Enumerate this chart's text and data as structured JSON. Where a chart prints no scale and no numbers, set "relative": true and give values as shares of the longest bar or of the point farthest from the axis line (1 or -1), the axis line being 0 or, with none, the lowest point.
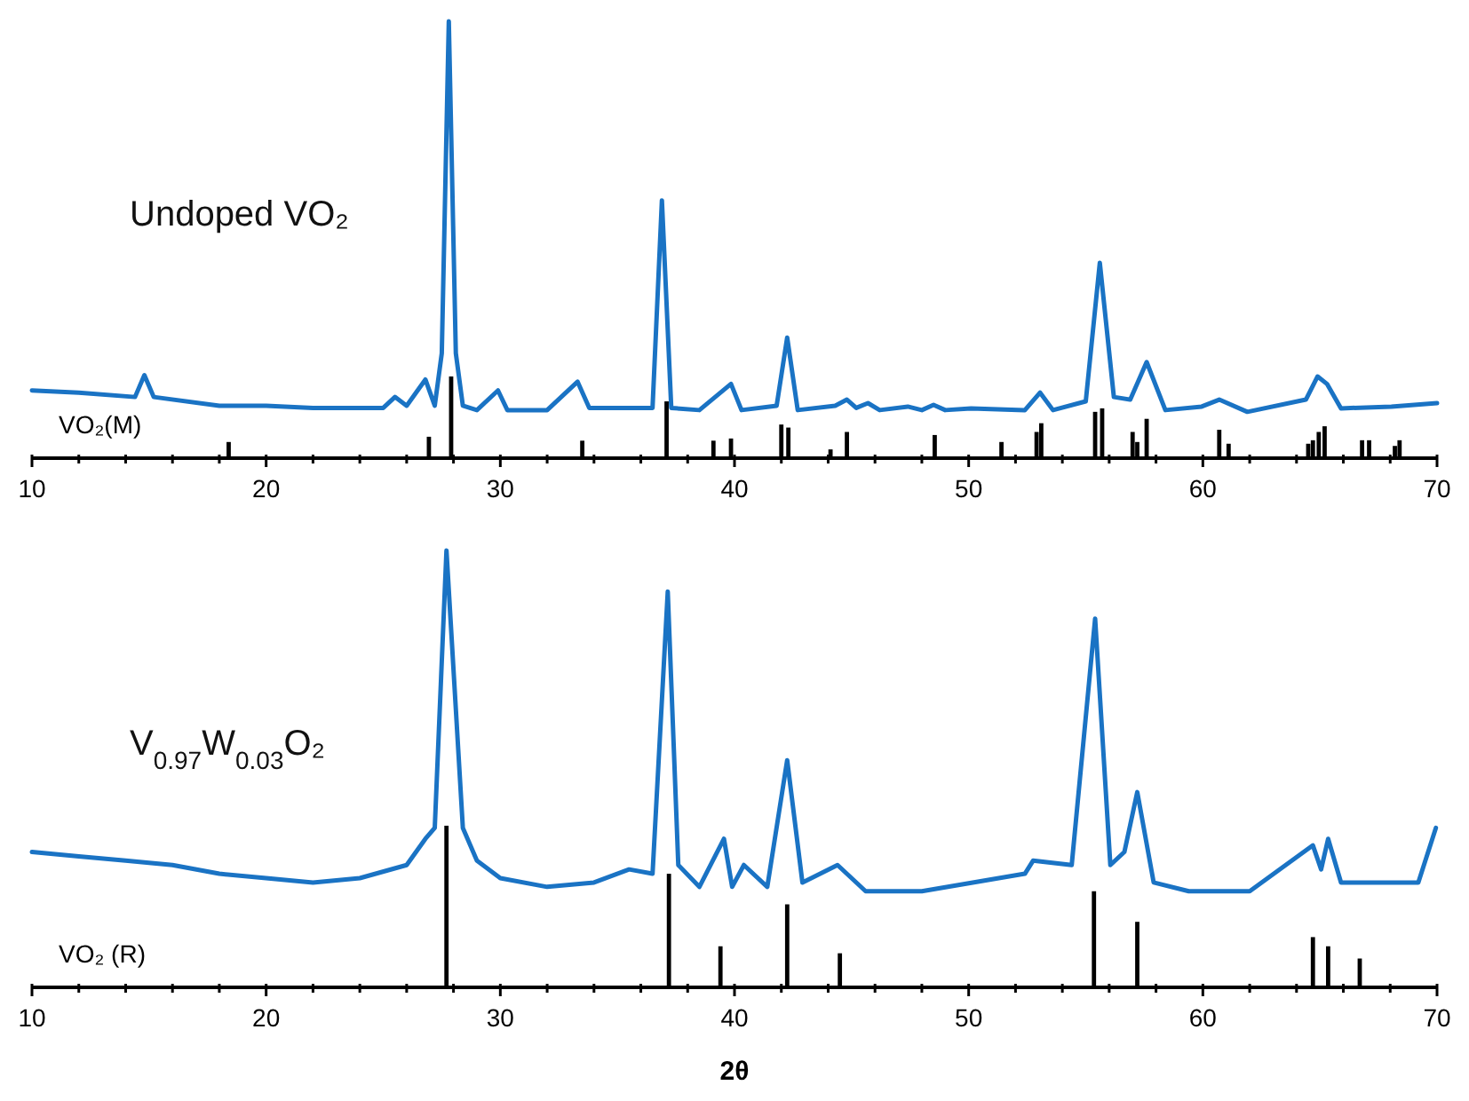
{
  "chart_data": [
    {
      "type": "line",
      "title": "Undoped VO₂",
      "relative": true,
      "xlim": [
        10,
        70
      ],
      "xticks": [
        10,
        {
          "value": 12,
          "label": null
        },
        {
          "value": 14,
          "label": null
        },
        {
          "value": 16,
          "label": null
        },
        {
          "value": 18,
          "label": null
        },
        20,
        {
          "value": 22,
          "label": null
        },
        {
          "value": 24,
          "label": null
        },
        {
          "value": 26,
          "label": null
        },
        {
          "value": 28,
          "label": null
        },
        30,
        {
          "value": 32,
          "label": null
        },
        {
          "value": 34,
          "label": null
        },
        {
          "value": 36,
          "label": null
        },
        {
          "value": 38,
          "label": null
        },
        40,
        {
          "value": 42,
          "label": null
        },
        {
          "value": 44,
          "label": null
        },
        {
          "value": 46,
          "label": null
        },
        {
          "value": 48,
          "label": null
        },
        50,
        {
          "value": 52,
          "label": null
        },
        {
          "value": 54,
          "label": null
        },
        {
          "value": 56,
          "label": null
        },
        {
          "value": 58,
          "label": null
        },
        60,
        {
          "value": 62,
          "label": null
        },
        {
          "value": 64,
          "label": null
        },
        {
          "value": 66,
          "label": null
        },
        {
          "value": 68,
          "label": null
        },
        70
      ],
      "series": [
        {
          "color": "#1a73c4",
          "x": [
            10,
            12,
            14.4,
            14.8,
            15.2,
            18,
            20,
            22,
            25,
            25.5,
            26,
            26.8,
            27.2,
            27.5,
            27.8,
            28.1,
            28.4,
            29,
            29.9,
            30.3,
            32,
            33.3,
            33.8,
            35,
            36.5,
            36.9,
            37.3,
            38.5,
            39.85,
            40.3,
            41.8,
            42.25,
            42.7,
            44.3,
            44.8,
            45.2,
            45.7,
            46.2,
            47.4,
            48,
            48.5,
            49,
            50.1,
            52.4,
            53.05,
            53.6,
            55,
            55.6,
            56.2,
            56.9,
            57.6,
            58.4,
            59.95,
            60.7,
            61.9,
            64.4,
            64.9,
            65.3,
            65.9,
            68.05,
            70
          ],
          "values": [
            0.155,
            0.15,
            0.14,
            0.19,
            0.14,
            0.12,
            0.12,
            0.115,
            0.115,
            0.14,
            0.12,
            0.18,
            0.12,
            0.24,
            1,
            0.24,
            0.12,
            0.11,
            0.155,
            0.11,
            0.11,
            0.175,
            0.115,
            0.115,
            0.115,
            0.59,
            0.115,
            0.11,
            0.17,
            0.11,
            0.12,
            0.276,
            0.11,
            0.12,
            0.134,
            0.115,
            0.126,
            0.11,
            0.118,
            0.11,
            0.122,
            0.11,
            0.114,
            0.11,
            0.15,
            0.11,
            0.13,
            0.447,
            0.14,
            0.134,
            0.22,
            0.11,
            0.118,
            0.134,
            0.106,
            0.134,
            0.187,
            0.17,
            0.114,
            0.118,
            0.126
          ]
        },
        {
          "name": "VO₂(M)",
          "type": "bar",
          "color": "#000000",
          "x": [
            18.4,
            26.95,
            27.9,
            33.5,
            37.1,
            39.1,
            39.85,
            42.0,
            42.3,
            44.1,
            44.8,
            48.55,
            51.4,
            52.9,
            53.1,
            55.4,
            55.7,
            57.0,
            57.2,
            57.6,
            60.7,
            61.1,
            64.5,
            64.7,
            64.95,
            65.2,
            66.8,
            67.1,
            68.2,
            68.4
          ],
          "values": [
            0.037,
            0.049,
            0.187,
            0.04,
            0.13,
            0.04,
            0.045,
            0.077,
            0.07,
            0.02,
            0.06,
            0.053,
            0.037,
            0.06,
            0.08,
            0.106,
            0.114,
            0.06,
            0.037,
            0.09,
            0.065,
            0.033,
            0.033,
            0.041,
            0.06,
            0.073,
            0.041,
            0.041,
            0.028,
            0.041
          ]
        }
      ]
    },
    {
      "type": "line",
      "title": "V$_{0.97}$W$_{0.03}$O₂",
      "relative": true,
      "xlabel": "2θ",
      "xlim": [
        10,
        70
      ],
      "xticks": [
        10,
        {
          "value": 12,
          "label": null
        },
        {
          "value": 14,
          "label": null
        },
        {
          "value": 16,
          "label": null
        },
        {
          "value": 18,
          "label": null
        },
        20,
        {
          "value": 22,
          "label": null
        },
        {
          "value": 24,
          "label": null
        },
        {
          "value": 26,
          "label": null
        },
        {
          "value": 28,
          "label": null
        },
        30,
        {
          "value": 32,
          "label": null
        },
        {
          "value": 34,
          "label": null
        },
        {
          "value": 36,
          "label": null
        },
        {
          "value": 38,
          "label": null
        },
        40,
        {
          "value": 42,
          "label": null
        },
        {
          "value": 44,
          "label": null
        },
        {
          "value": 46,
          "label": null
        },
        {
          "value": 48,
          "label": null
        },
        50,
        {
          "value": 52,
          "label": null
        },
        {
          "value": 54,
          "label": null
        },
        {
          "value": 56,
          "label": null
        },
        {
          "value": 58,
          "label": null
        },
        60,
        {
          "value": 62,
          "label": null
        },
        {
          "value": 64,
          "label": null
        },
        {
          "value": 66,
          "label": null
        },
        {
          "value": 68,
          "label": null
        },
        70
      ],
      "series": [
        {
          "color": "#1a73c4",
          "x": [
            10,
            12,
            14,
            16,
            18,
            20,
            22,
            24,
            26,
            26.8,
            27.2,
            27.7,
            28.4,
            29,
            30,
            32,
            34,
            35.5,
            36.5,
            37.15,
            37.6,
            38.5,
            39.55,
            39.9,
            40.4,
            41.4,
            42.25,
            42.9,
            44.4,
            45.6,
            48,
            52.4,
            52.75,
            54.4,
            55.4,
            56.05,
            56.65,
            57.2,
            57.9,
            59.4,
            62,
            64.7,
            65.05,
            65.35,
            65.9,
            69.2,
            69.95
          ],
          "values": [
            0.31,
            0.3,
            0.29,
            0.28,
            0.26,
            0.25,
            0.24,
            0.25,
            0.28,
            0.34,
            0.365,
            1,
            0.365,
            0.29,
            0.25,
            0.23,
            0.24,
            0.27,
            0.26,
            0.906,
            0.28,
            0.23,
            0.34,
            0.23,
            0.28,
            0.23,
            0.52,
            0.24,
            0.28,
            0.22,
            0.22,
            0.26,
            0.29,
            0.28,
            0.844,
            0.28,
            0.31,
            0.447,
            0.24,
            0.22,
            0.22,
            0.325,
            0.27,
            0.34,
            0.24,
            0.24,
            0.365
          ]
        },
        {
          "name": "VO₂ (R)",
          "type": "bar",
          "color": "#000000",
          "x": [
            27.7,
            37.2,
            39.4,
            42.25,
            44.5,
            55.35,
            57.2,
            64.7,
            65.35,
            66.7
          ],
          "values": [
            0.37,
            0.26,
            0.094,
            0.19,
            0.078,
            0.22,
            0.15,
            0.115,
            0.094,
            0.066
          ]
        }
      ]
    }
  ]
}
